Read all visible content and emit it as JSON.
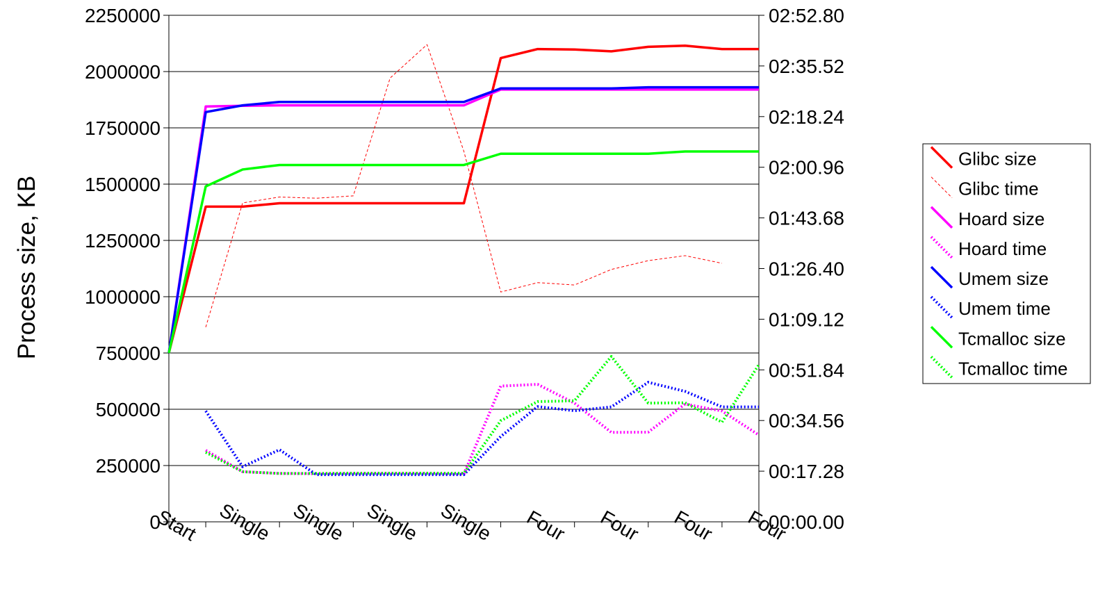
{
  "chart_data": {
    "type": "line",
    "title": "",
    "ylabel": "Process size, KB",
    "xlabel": "",
    "categories": [
      "Start",
      "",
      "Single",
      "",
      "Single",
      "",
      "Single",
      "",
      "Single",
      "",
      "Four",
      "",
      "Four",
      "",
      "Four",
      "",
      "Four"
    ],
    "x_tick_labels": [
      "Start",
      "Single",
      "Single",
      "Single",
      "Single",
      "Four",
      "Four",
      "Four",
      "Four"
    ],
    "y_left": {
      "min": 0,
      "max": 2250000,
      "ticks": [
        "0",
        "250000",
        "500000",
        "750000",
        "1000000",
        "1250000",
        "1500000",
        "1750000",
        "2000000",
        "2250000"
      ]
    },
    "y_right": {
      "min_seconds": 0,
      "max_seconds": 172.8,
      "ticks": [
        "00:00.00",
        "00:17.28",
        "00:34.56",
        "00:51.84",
        "01:09.12",
        "01:26.40",
        "01:43.68",
        "02:00.96",
        "02:18.24",
        "02:35.52",
        "02:52.80"
      ]
    },
    "grid": "horizontal",
    "legend_position": "right",
    "series": [
      {
        "name": "Glibc size",
        "axis": "left",
        "color": "#ff0000",
        "style": "solid",
        "values": [
          750000,
          1400000,
          1400000,
          1415000,
          1415000,
          1415000,
          1415000,
          1415000,
          1415000,
          2060000,
          2100000,
          2098000,
          2090000,
          2110000,
          2115000,
          2100000,
          2100000
        ]
      },
      {
        "name": "Glibc time",
        "axis": "right",
        "color": "#ff0000",
        "style": "thin-dashed",
        "values": [
          null,
          66.4,
          108.8,
          110.8,
          110.4,
          111.2,
          151.4,
          162.8,
          126.4,
          78.4,
          81.6,
          80.8,
          86.1,
          89.1,
          90.8,
          88.2,
          null
        ]
      },
      {
        "name": "Hoard size",
        "axis": "left",
        "color": "#ff00ff",
        "style": "solid",
        "values": [
          750000,
          1845000,
          1848000,
          1850000,
          1850000,
          1850000,
          1850000,
          1850000,
          1850000,
          1920000,
          1920000,
          1920000,
          1920000,
          1920000,
          1920000,
          1920000,
          1920000
        ]
      },
      {
        "name": "Hoard time",
        "axis": "right",
        "color": "#ff00ff",
        "style": "dotted",
        "values": [
          null,
          24.4,
          17.1,
          16.5,
          16.4,
          16.5,
          16.5,
          16.5,
          16.3,
          46.3,
          46.9,
          40.5,
          30.5,
          30.6,
          40.2,
          37.8,
          29.6
        ]
      },
      {
        "name": "Umem size",
        "axis": "left",
        "color": "#0000ff",
        "style": "solid",
        "values": [
          750000,
          1820000,
          1850000,
          1865000,
          1865000,
          1865000,
          1865000,
          1865000,
          1865000,
          1925000,
          1925000,
          1925000,
          1925000,
          1930000,
          1930000,
          1930000,
          1930000
        ]
      },
      {
        "name": "Umem time",
        "axis": "right",
        "color": "#0000ff",
        "style": "dotted",
        "values": [
          null,
          37.8,
          18.8,
          24.6,
          16.1,
          16.1,
          16.1,
          16.1,
          16.1,
          29.1,
          39.3,
          37.9,
          39.2,
          47.6,
          44.5,
          39.2,
          39.2
        ]
      },
      {
        "name": "Tcmalloc size",
        "axis": "left",
        "color": "#00ff00",
        "style": "solid",
        "values": [
          750000,
          1490000,
          1565000,
          1585000,
          1585000,
          1585000,
          1585000,
          1585000,
          1585000,
          1635000,
          1635000,
          1635000,
          1635000,
          1635000,
          1645000,
          1645000,
          1645000
        ]
      },
      {
        "name": "Tcmalloc time",
        "axis": "right",
        "color": "#00ff00",
        "style": "dotted",
        "values": [
          null,
          23.7,
          17.1,
          16.5,
          16.5,
          16.6,
          16.6,
          16.6,
          16.6,
          34.5,
          41.0,
          41.3,
          56.4,
          40.5,
          40.6,
          34.0,
          53.6
        ]
      }
    ]
  }
}
